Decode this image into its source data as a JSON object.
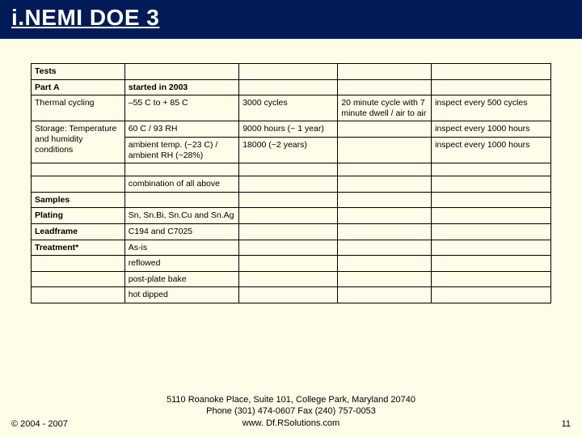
{
  "title": "i.NEMI DOE 3",
  "table": {
    "rows": [
      [
        {
          "t": "Tests",
          "b": 1
        },
        {
          "t": ""
        },
        {
          "t": ""
        },
        {
          "t": ""
        },
        {
          "t": ""
        }
      ],
      [
        {
          "t": "Part A",
          "b": 1
        },
        {
          "t": "started in 2003",
          "b": 1
        },
        {
          "t": ""
        },
        {
          "t": ""
        },
        {
          "t": ""
        }
      ],
      [
        {
          "t": "Thermal cycling"
        },
        {
          "t": "–55 C to + 85 C"
        },
        {
          "t": "3000 cycles"
        },
        {
          "t": "20 minute cycle with 7 minute dwell / air to air"
        },
        {
          "t": "inspect every 500 cycles"
        }
      ],
      [
        {
          "t": "Storage: Temperature and humidity conditions",
          "rs": 2
        },
        {
          "t": "60 C / 93 RH"
        },
        {
          "t": "9000 hours (~ 1 year)"
        },
        {
          "t": ""
        },
        {
          "t": "inspect every 1000 hours"
        }
      ],
      [
        {
          "t": "ambient temp. (~23 C) / ambient RH (~28%)"
        },
        {
          "t": "18000 (~2 years)"
        },
        {
          "t": ""
        },
        {
          "t": "inspect every 1000 hours"
        }
      ],
      [
        {
          "t": ""
        },
        {
          "t": ""
        },
        {
          "t": ""
        },
        {
          "t": ""
        },
        {
          "t": ""
        }
      ],
      [
        {
          "t": ""
        },
        {
          "t": "combination of all above"
        },
        {
          "t": ""
        },
        {
          "t": ""
        },
        {
          "t": ""
        }
      ],
      [
        {
          "t": "Samples",
          "b": 1
        },
        {
          "t": ""
        },
        {
          "t": ""
        },
        {
          "t": ""
        },
        {
          "t": ""
        }
      ],
      [
        {
          "t": "Plating",
          "b": 1
        },
        {
          "t": "Sn, Sn.Bi, Sn.Cu and Sn.Ag"
        },
        {
          "t": ""
        },
        {
          "t": ""
        },
        {
          "t": ""
        }
      ],
      [
        {
          "t": "Leadframe",
          "b": 1
        },
        {
          "t": "C194 and C7025"
        },
        {
          "t": ""
        },
        {
          "t": ""
        },
        {
          "t": ""
        }
      ],
      [
        {
          "t": "Treatment*",
          "b": 1
        },
        {
          "t": "As-is"
        },
        {
          "t": ""
        },
        {
          "t": ""
        },
        {
          "t": ""
        }
      ],
      [
        {
          "t": ""
        },
        {
          "t": "reflowed"
        },
        {
          "t": ""
        },
        {
          "t": ""
        },
        {
          "t": ""
        }
      ],
      [
        {
          "t": ""
        },
        {
          "t": "post-plate bake"
        },
        {
          "t": ""
        },
        {
          "t": ""
        },
        {
          "t": ""
        }
      ],
      [
        {
          "t": ""
        },
        {
          "t": "hot dipped"
        },
        {
          "t": ""
        },
        {
          "t": ""
        },
        {
          "t": ""
        }
      ]
    ]
  },
  "footer": {
    "copyright": "© 2004 - 2007",
    "address_line1": "5110 Roanoke Place, Suite 101, College Park, Maryland 20740",
    "address_line2": "Phone (301) 474-0607  Fax (240) 757-0053",
    "address_line3": "www. Df.RSolutions.com",
    "page": "11"
  }
}
